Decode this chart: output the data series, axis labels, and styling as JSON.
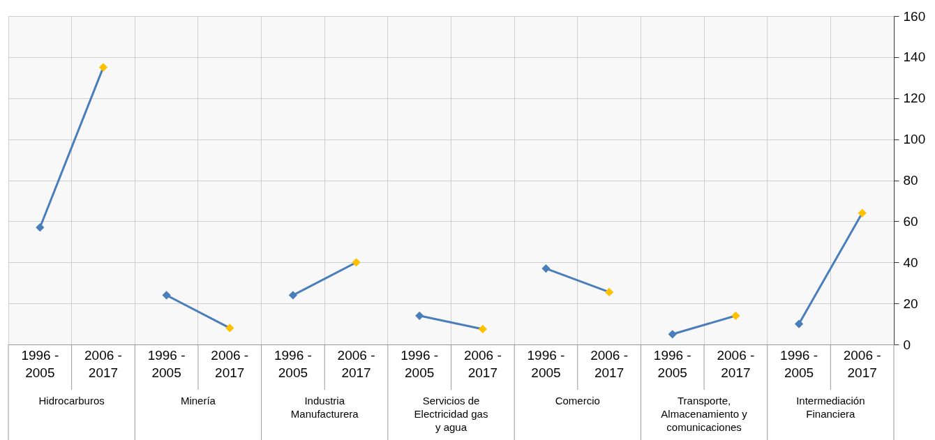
{
  "chart_data": {
    "type": "line",
    "categories": [
      "1996 - 2005",
      "2006 - 2017",
      "1996 - 2005",
      "2006 - 2017",
      "1996 - 2005",
      "2006 - 2017",
      "1996 - 2005",
      "2006 - 2017",
      "1996 - 2005",
      "2006 - 2017",
      "1996 - 2005",
      "2006 - 2017",
      "1996 - 2005",
      "2006 - 2017"
    ],
    "annotations": [
      "Hidrocarburos",
      "Minería",
      "Industria Manufacturera",
      "Servicios de Electricidad gas y agua",
      "Comercio",
      "Transporte, Almacenamiento y comunicaciones",
      "Intermediación Financiera"
    ],
    "series": [
      {
        "color": "#4a7ebb",
        "colors": [
          "#4a7ebb",
          "#ffc000",
          null,
          null,
          null,
          null,
          null,
          null,
          null,
          null,
          null,
          null,
          null,
          null
        ],
        "values": [
          57,
          135,
          null,
          null,
          null,
          null,
          null,
          null,
          null,
          null,
          null,
          null,
          null,
          null
        ]
      },
      {
        "color": "#4a7ebb",
        "colors": [
          null,
          null,
          "#4a7ebb",
          "#ffc000",
          null,
          null,
          null,
          null,
          null,
          null,
          null,
          null,
          null,
          null
        ],
        "values": [
          null,
          null,
          24,
          8,
          null,
          null,
          null,
          null,
          null,
          null,
          null,
          null,
          null,
          null
        ]
      },
      {
        "color": "#4a7ebb",
        "colors": [
          null,
          null,
          null,
          null,
          "#4a7ebb",
          "#ffc000",
          null,
          null,
          null,
          null,
          null,
          null,
          null,
          null
        ],
        "values": [
          null,
          null,
          null,
          null,
          24,
          40,
          null,
          null,
          null,
          null,
          null,
          null,
          null,
          null
        ]
      },
      {
        "color": "#4a7ebb",
        "colors": [
          null,
          null,
          null,
          null,
          null,
          null,
          "#4a7ebb",
          "#ffc000",
          null,
          null,
          null,
          null,
          null,
          null
        ],
        "values": [
          null,
          null,
          null,
          null,
          null,
          null,
          14,
          7.5,
          null,
          null,
          null,
          null,
          null,
          null
        ]
      },
      {
        "color": "#4a7ebb",
        "colors": [
          null,
          null,
          null,
          null,
          null,
          null,
          null,
          null,
          "#4a7ebb",
          "#ffc000",
          null,
          null,
          null,
          null
        ],
        "values": [
          null,
          null,
          null,
          null,
          null,
          null,
          null,
          null,
          37,
          25.5,
          null,
          null,
          null,
          null
        ]
      },
      {
        "color": "#4a7ebb",
        "colors": [
          null,
          null,
          null,
          null,
          null,
          null,
          null,
          null,
          null,
          null,
          "#4a7ebb",
          "#ffc000",
          null,
          null
        ],
        "values": [
          null,
          null,
          null,
          null,
          null,
          null,
          null,
          null,
          null,
          null,
          5,
          14,
          null,
          null
        ]
      },
      {
        "color": "#4a7ebb",
        "colors": [
          null,
          null,
          null,
          null,
          null,
          null,
          null,
          null,
          null,
          null,
          null,
          null,
          "#4a7ebb",
          "#ffc000"
        ],
        "values": [
          null,
          null,
          null,
          null,
          null,
          null,
          null,
          null,
          null,
          null,
          null,
          null,
          10,
          64
        ]
      }
    ],
    "ylim": [
      0,
      160
    ],
    "yticks": [
      0,
      20,
      40,
      60,
      80,
      100,
      120,
      140,
      160
    ],
    "grid": true,
    "marker": "diamond",
    "line_style": "solid"
  }
}
